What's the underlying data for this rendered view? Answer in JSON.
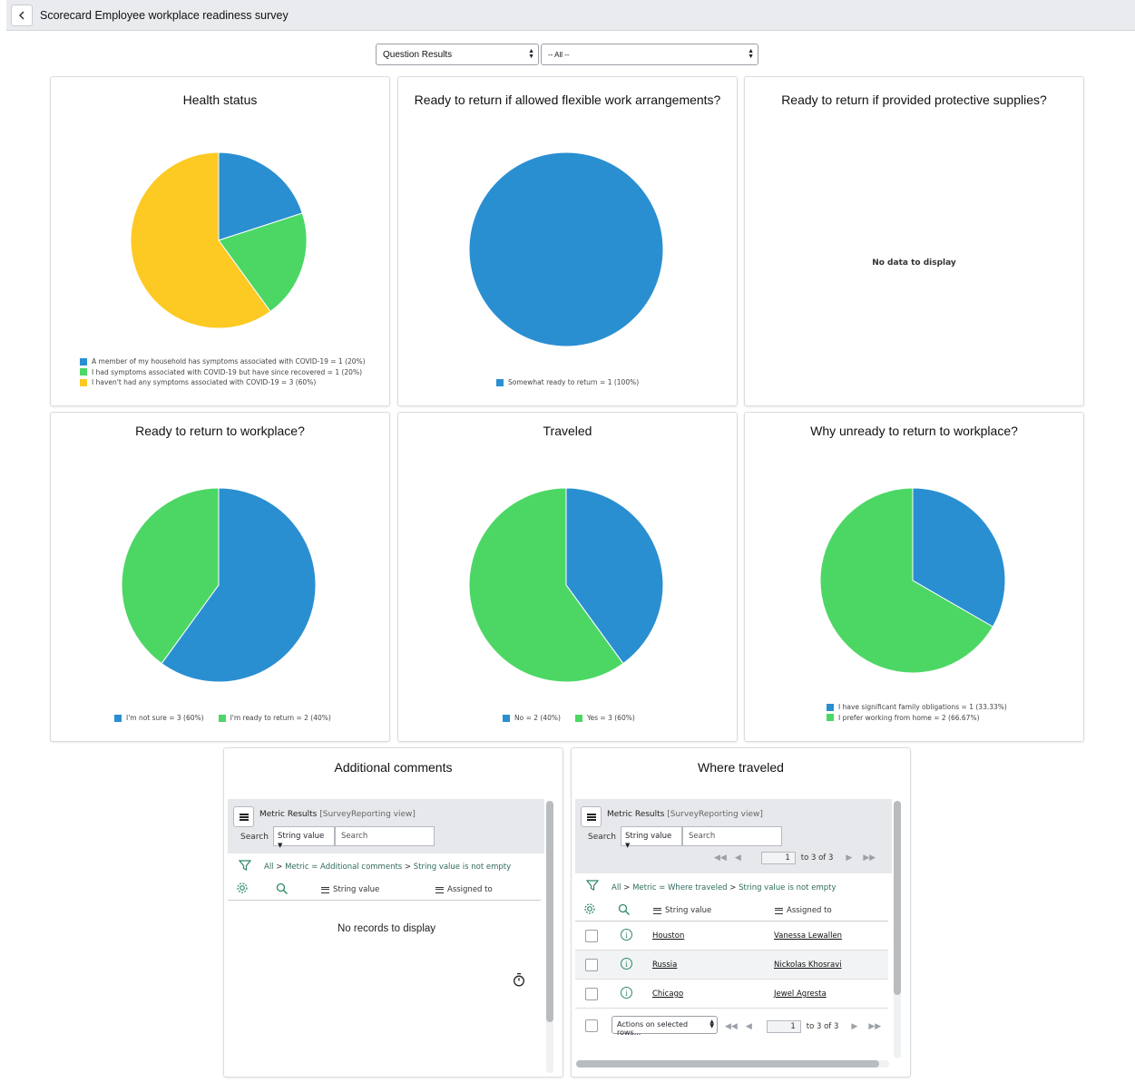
{
  "header": {
    "title": "Scorecard Employee workplace readiness survey",
    "back_label": "back"
  },
  "filters": {
    "view_select": "Question Results",
    "question_select": "-- All --"
  },
  "colors": {
    "blue": "#2a8fd1",
    "green": "#4cd765",
    "yellow": "#fdc923"
  },
  "cards": {
    "health": {
      "title": "Health status"
    },
    "flexible": {
      "title": "Ready to return if allowed flexible work arrangements?"
    },
    "protective": {
      "title": "Ready to return if provided protective supplies?",
      "empty_text": "No data to display"
    },
    "ready": {
      "title": "Ready to return to workplace?"
    },
    "traveled": {
      "title": "Traveled"
    },
    "unready": {
      "title": "Why unready to return to workplace?"
    },
    "comments": {
      "title": "Additional comments"
    },
    "where": {
      "title": "Where traveled"
    }
  },
  "chart_data": [
    {
      "id": "health",
      "type": "pie",
      "title": "Health status",
      "slices": [
        {
          "label": "A member of my household has symptoms associated with COVID-19 = 1 (20%)",
          "value": 1,
          "color": "#2a8fd1"
        },
        {
          "label": "I had symptoms associated with COVID-19 but have since recovered = 1 (20%)",
          "value": 1,
          "color": "#4cd765"
        },
        {
          "label": "I haven't had any symptoms associated with COVID-19 = 3 (60%)",
          "value": 3,
          "color": "#fdc923"
        }
      ]
    },
    {
      "id": "flexible",
      "type": "pie",
      "title": "Ready to return if allowed flexible work arrangements?",
      "slices": [
        {
          "label": "Somewhat ready to return = 1 (100%)",
          "value": 1,
          "color": "#2a8fd1"
        }
      ]
    },
    {
      "id": "protective",
      "type": "pie",
      "title": "Ready to return if provided protective supplies?",
      "slices": []
    },
    {
      "id": "ready",
      "type": "pie",
      "title": "Ready to return to workplace?",
      "slices": [
        {
          "label": "I'm not sure = 3 (60%)",
          "value": 3,
          "color": "#2a8fd1"
        },
        {
          "label": "I'm ready to return = 2 (40%)",
          "value": 2,
          "color": "#4cd765"
        }
      ]
    },
    {
      "id": "traveled",
      "type": "pie",
      "title": "Traveled",
      "slices": [
        {
          "label": "No = 2 (40%)",
          "value": 2,
          "color": "#2a8fd1"
        },
        {
          "label": "Yes = 3 (60%)",
          "value": 3,
          "color": "#4cd765"
        }
      ]
    },
    {
      "id": "unready",
      "type": "pie",
      "title": "Why unready to return to workplace?",
      "slices": [
        {
          "label": "I have significant family obligations = 1 (33.33%)",
          "value": 1,
          "color": "#2a8fd1"
        },
        {
          "label": "I prefer working from home = 2 (66.67%)",
          "value": 2,
          "color": "#4cd765"
        }
      ]
    }
  ],
  "comments_list": {
    "title": "Metric Results",
    "subtitle": "[SurveyReporting view]",
    "search_label": "Search",
    "search_field": "String value",
    "search_placeholder": "Search",
    "breadcrumb": {
      "all": "All",
      "sep": ">",
      "metric": "Metric = Additional comments",
      "condition": "String value is not empty"
    },
    "columns": [
      "String value",
      "Assigned to"
    ],
    "empty_text": "No records to display"
  },
  "where_list": {
    "title": "Metric Results",
    "subtitle": "[SurveyReporting view]",
    "search_label": "Search",
    "search_field": "String value",
    "search_placeholder": "Search",
    "page_value": "1",
    "page_of": "to 3 of 3",
    "breadcrumb": {
      "all": "All",
      "sep": ">",
      "metric": "Metric = Where traveled",
      "condition": "String value is not empty"
    },
    "columns": [
      "String value",
      "Assigned to"
    ],
    "rows": [
      {
        "value": "Houston",
        "assigned": "Vanessa Lewallen"
      },
      {
        "value": "Russia",
        "assigned": "Nickolas Khosravi"
      },
      {
        "value": "Chicago",
        "assigned": "Jewel Agresta"
      }
    ],
    "actions_label": "Actions on selected rows...",
    "footer_page_value": "1",
    "footer_page_of": "to 3 of 3"
  }
}
